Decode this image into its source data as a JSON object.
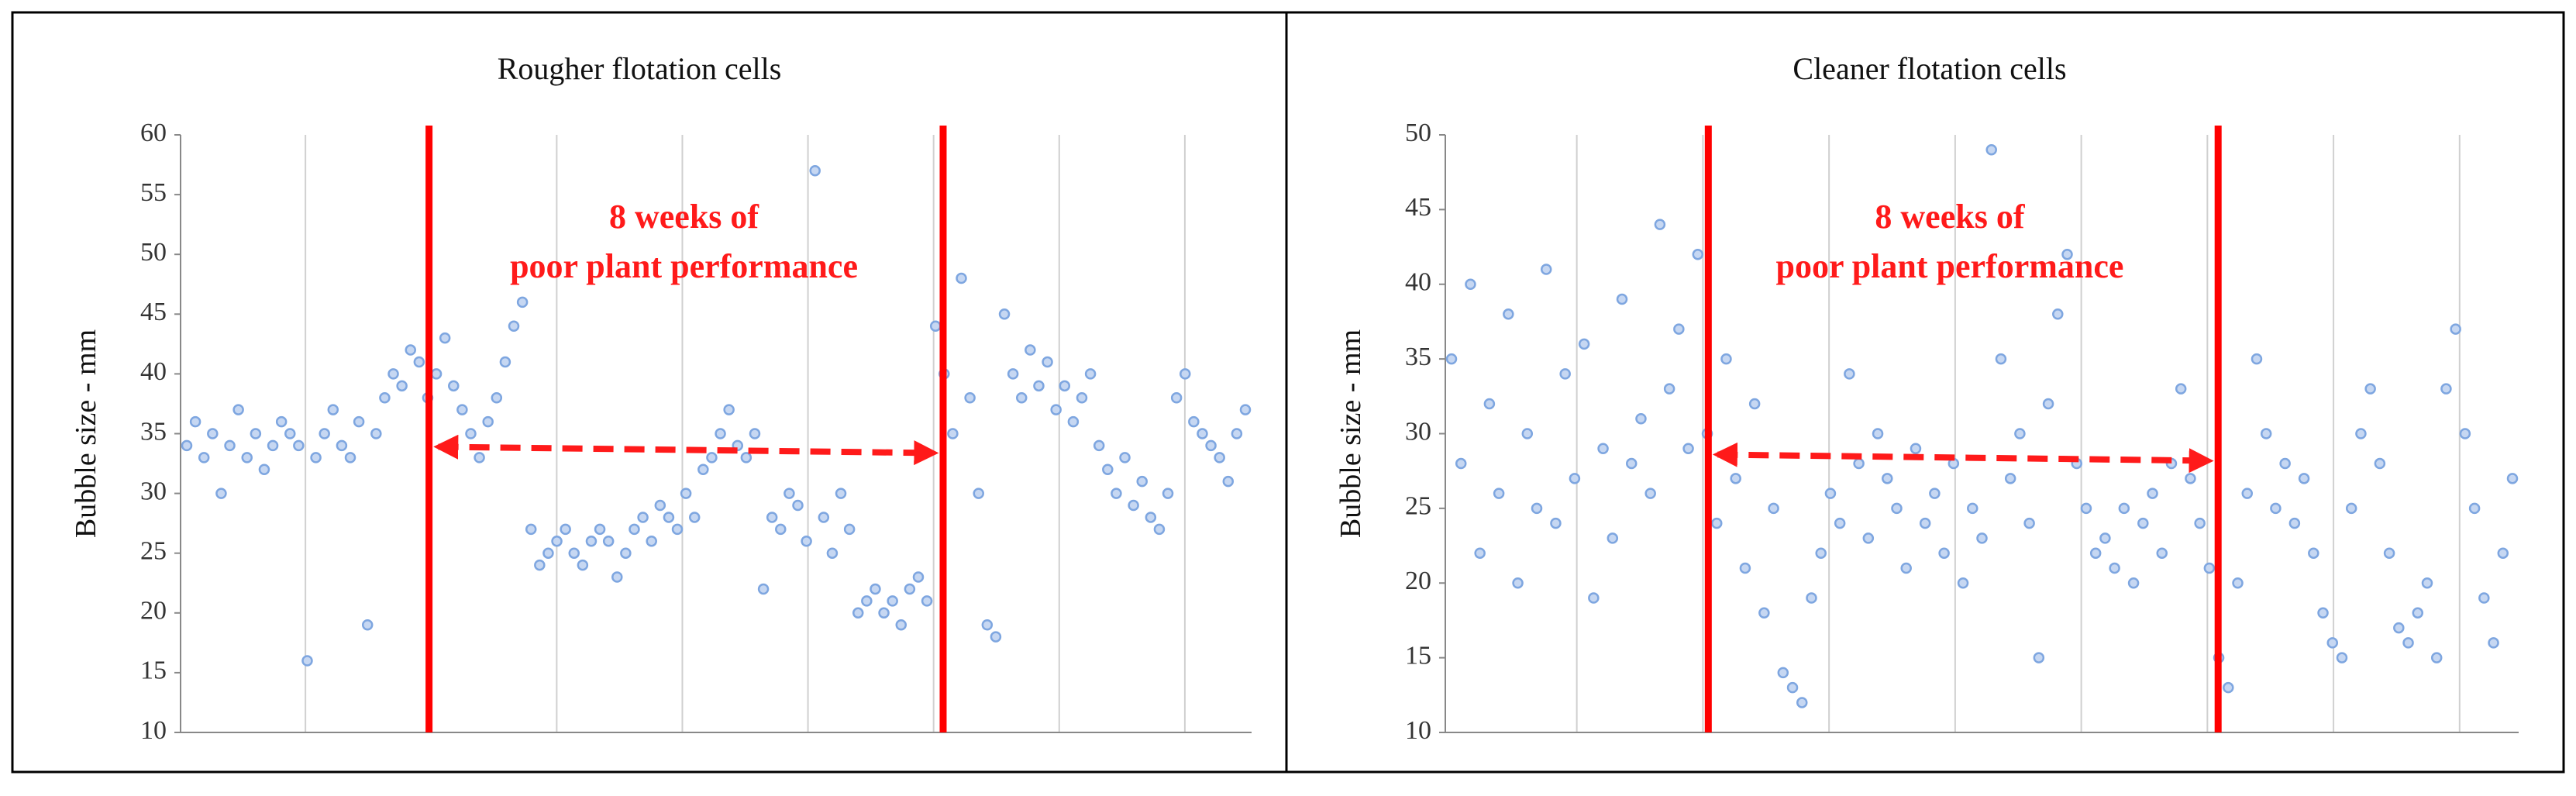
{
  "chart_data": [
    {
      "type": "scatter",
      "title": "Rougher flotation cells",
      "ylabel": "Bubble size - mm",
      "annotation": [
        "8 weeks of",
        "poor plant performance"
      ],
      "ylim": [
        10,
        60
      ],
      "yticks": [
        10,
        15,
        20,
        25,
        30,
        35,
        40,
        45,
        50,
        55,
        60
      ],
      "color": "#7ea6e0",
      "values": [
        34,
        36,
        33,
        35,
        30,
        34,
        37,
        33,
        35,
        32,
        34,
        36,
        35,
        34,
        16,
        33,
        35,
        37,
        34,
        33,
        36,
        19,
        35,
        38,
        40,
        39,
        42,
        41,
        38,
        40,
        43,
        39,
        37,
        35,
        33,
        36,
        38,
        41,
        44,
        46,
        27,
        24,
        25,
        26,
        27,
        25,
        24,
        26,
        27,
        26,
        23,
        25,
        27,
        28,
        26,
        29,
        28,
        27,
        30,
        28,
        32,
        33,
        35,
        37,
        34,
        33,
        35,
        22,
        28,
        27,
        30,
        29,
        26,
        57,
        28,
        25,
        30,
        27,
        20,
        21,
        22,
        20,
        21,
        19,
        22,
        23,
        21,
        44,
        40,
        35,
        48,
        38,
        30,
        19,
        18,
        45,
        40,
        38,
        42,
        39,
        41,
        37,
        39,
        36,
        38,
        40,
        34,
        32,
        30,
        33,
        29,
        31,
        28,
        27,
        30,
        38,
        40,
        36,
        35,
        34,
        33,
        31,
        35,
        37
      ]
    },
    {
      "type": "scatter",
      "title": "Cleaner flotation cells",
      "ylabel": "Bubble size - mm",
      "annotation": [
        "8 weeks of",
        "poor plant performance"
      ],
      "ylim": [
        10,
        50
      ],
      "yticks": [
        10,
        15,
        20,
        25,
        30,
        35,
        40,
        45,
        50
      ],
      "color": "#7ea6e0",
      "values": [
        35,
        28,
        40,
        22,
        32,
        26,
        38,
        20,
        30,
        25,
        41,
        24,
        34,
        27,
        36,
        19,
        29,
        23,
        39,
        28,
        31,
        26,
        44,
        33,
        37,
        29,
        42,
        30,
        24,
        35,
        27,
        21,
        32,
        18,
        25,
        14,
        13,
        12,
        19,
        22,
        26,
        24,
        34,
        28,
        23,
        30,
        27,
        25,
        21,
        29,
        24,
        26,
        22,
        28,
        20,
        25,
        23,
        49,
        35,
        27,
        30,
        24,
        15,
        32,
        38,
        42,
        28,
        25,
        22,
        23,
        21,
        25,
        20,
        24,
        26,
        22,
        28,
        33,
        27,
        24,
        21,
        15,
        13,
        20,
        26,
        35,
        30,
        25,
        28,
        24,
        27,
        22,
        18,
        16,
        15,
        25,
        30,
        33,
        28,
        22,
        17,
        16,
        18,
        20,
        15,
        33,
        37,
        30,
        25,
        19,
        16,
        22,
        27
      ]
    }
  ]
}
